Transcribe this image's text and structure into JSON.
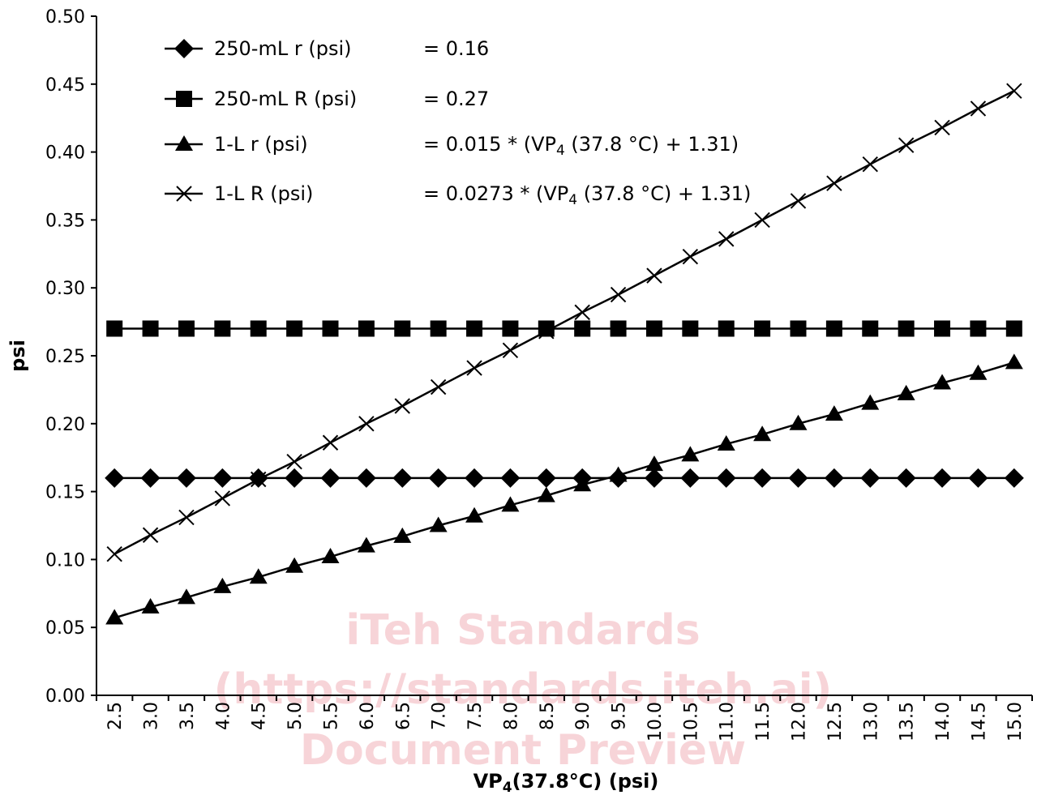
{
  "chart_data": {
    "type": "line",
    "xlabel_main": "VP",
    "xlabel_sub": "4",
    "xlabel_rest": "(37.8°C) (psi)",
    "ylabel": "psi",
    "ylim": [
      0,
      0.5
    ],
    "yticks": [
      "0.00",
      "0.05",
      "0.10",
      "0.15",
      "0.20",
      "0.25",
      "0.30",
      "0.35",
      "0.40",
      "0.45",
      "0.50"
    ],
    "categories": [
      "2.5",
      "3.0",
      "3.5",
      "4.0",
      "4.5",
      "5.0",
      "5.5",
      "6.0",
      "6.5",
      "7.0",
      "7.5",
      "8.0",
      "8.5",
      "9.0",
      "9.5",
      "10.0",
      "10.5",
      "11.0",
      "11.5",
      "12.0",
      "12.5",
      "13.0",
      "13.5",
      "14.0",
      "14.5",
      "15.0"
    ],
    "x": [
      2.5,
      3.0,
      3.5,
      4.0,
      4.5,
      5.0,
      5.5,
      6.0,
      6.5,
      7.0,
      7.5,
      8.0,
      8.5,
      9.0,
      9.5,
      10.0,
      10.5,
      11.0,
      11.5,
      12.0,
      12.5,
      13.0,
      13.5,
      14.0,
      14.5,
      15.0
    ],
    "grid": false,
    "legend_position": "top-left",
    "series": [
      {
        "name": "250-mL r (psi)",
        "marker": "diamond",
        "formula": "= 0.16",
        "values": [
          0.16,
          0.16,
          0.16,
          0.16,
          0.16,
          0.16,
          0.16,
          0.16,
          0.16,
          0.16,
          0.16,
          0.16,
          0.16,
          0.16,
          0.16,
          0.16,
          0.16,
          0.16,
          0.16,
          0.16,
          0.16,
          0.16,
          0.16,
          0.16,
          0.16,
          0.16
        ]
      },
      {
        "name": "250-mL R (psi)",
        "marker": "square",
        "formula": "= 0.27",
        "values": [
          0.27,
          0.27,
          0.27,
          0.27,
          0.27,
          0.27,
          0.27,
          0.27,
          0.27,
          0.27,
          0.27,
          0.27,
          0.27,
          0.27,
          0.27,
          0.27,
          0.27,
          0.27,
          0.27,
          0.27,
          0.27,
          0.27,
          0.27,
          0.27,
          0.27,
          0.27
        ]
      },
      {
        "name": "1-L r (psi)",
        "marker": "triangle",
        "formula_pre": "= 0.015 * (VP",
        "formula_sub": "4",
        "formula_post": " (37.8 °C) + 1.31)",
        "values": [
          0.057,
          0.065,
          0.072,
          0.08,
          0.087,
          0.095,
          0.102,
          0.11,
          0.117,
          0.125,
          0.132,
          0.14,
          0.147,
          0.155,
          0.162,
          0.17,
          0.177,
          0.185,
          0.192,
          0.2,
          0.207,
          0.215,
          0.222,
          0.23,
          0.237,
          0.245
        ]
      },
      {
        "name": "1-L R (psi)",
        "marker": "x",
        "formula_pre": "= 0.0273 * (VP",
        "formula_sub": "4",
        "formula_post": " (37.8 °C) + 1.31)",
        "values": [
          0.104,
          0.118,
          0.131,
          0.145,
          0.159,
          0.172,
          0.186,
          0.2,
          0.213,
          0.227,
          0.241,
          0.254,
          0.268,
          0.282,
          0.295,
          0.309,
          0.323,
          0.336,
          0.35,
          0.364,
          0.377,
          0.391,
          0.405,
          0.418,
          0.432,
          0.445
        ]
      }
    ]
  },
  "watermark": {
    "line1": "iTeh Standards",
    "line2": "(https://standards.iteh.ai)",
    "line3": "Document Preview"
  },
  "colors": {
    "series": "#000000",
    "watermark": "#f4c2c8"
  }
}
